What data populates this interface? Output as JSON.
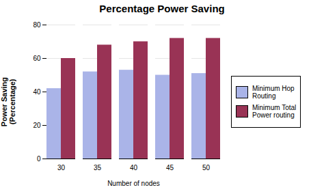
{
  "chart_data": {
    "type": "bar",
    "title": "Percentage Power Saving",
    "xlabel": "Number of nodes",
    "ylabel": "Power Saving\n(Percentage)",
    "categories": [
      30,
      35,
      40,
      45,
      50
    ],
    "series": [
      {
        "name": "Minimum Hop\nRouting",
        "color": "#aab4e8",
        "values": [
          42,
          52,
          53,
          50,
          51
        ]
      },
      {
        "name": "Minimum Total\nPower routing",
        "color": "#993355",
        "values": [
          60,
          68,
          70,
          72,
          72
        ]
      }
    ],
    "ylim": [
      0,
      80
    ],
    "yticks": [
      0,
      20,
      40,
      60,
      80
    ],
    "grid": true,
    "legend": "right"
  }
}
